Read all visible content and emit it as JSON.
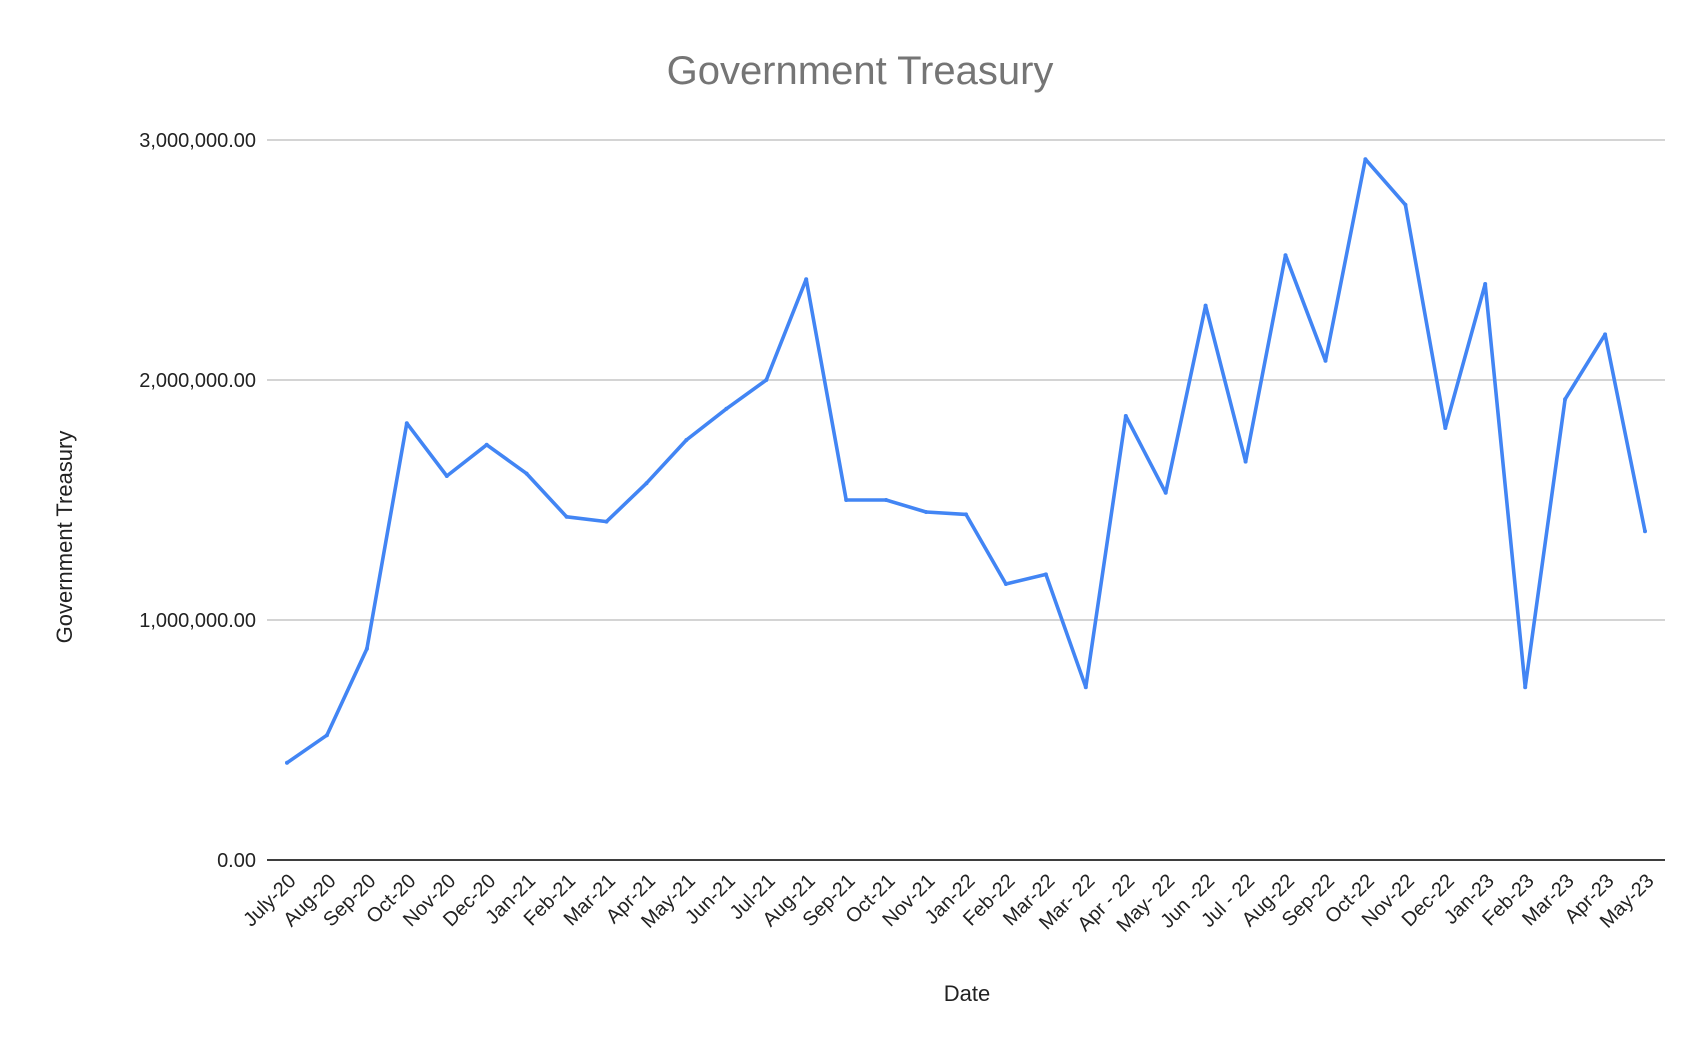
{
  "chart_data": {
    "type": "line",
    "title": "Government Treasury",
    "xlabel": "Date",
    "ylabel": "Government Treasury",
    "ylim": [
      0,
      3000000
    ],
    "yticks": [
      0,
      1000000,
      2000000,
      3000000
    ],
    "ytick_labels": [
      "0.00",
      "1,000,000.00",
      "2,000,000.00",
      "3,000,000.00"
    ],
    "grid": true,
    "legend": "none",
    "line_color": "#4285f4",
    "categories": [
      "July-20",
      "Aug-20",
      "Sep-20",
      "Oct-20",
      "Nov-20",
      "Dec-20",
      "Jan-21",
      "Feb-21",
      "Mar-21",
      "Apr-21",
      "May-21",
      "Jun-21",
      "Jul-21",
      "Aug-21",
      "Sep-21",
      "Oct-21",
      "Nov-21",
      "Jan-22",
      "Feb-22",
      "Mar-22",
      "Mar- 22",
      "Apr - 22",
      "May- 22",
      "Jun -22",
      "Jul - 22",
      "Aug-22",
      "Sep-22",
      "Oct-22",
      "Nov-22",
      "Dec-22",
      "Jan-23",
      "Feb-23",
      "Mar-23",
      "Apr-23",
      "May-23"
    ],
    "series": [
      {
        "values": [
          405000,
          520000,
          880000,
          1820000,
          1600000,
          1730000,
          1610000,
          1430000,
          1410000,
          1570000,
          1750000,
          1880000,
          2000000,
          2420000,
          1500000,
          1500000,
          1450000,
          1440000,
          1150000,
          1190000,
          720000,
          1850000,
          1530000,
          2310000,
          1660000,
          2520000,
          2080000,
          2920000,
          2730000,
          1800000,
          2400000,
          720000,
          1920000,
          2190000,
          1370000
        ]
      }
    ]
  }
}
